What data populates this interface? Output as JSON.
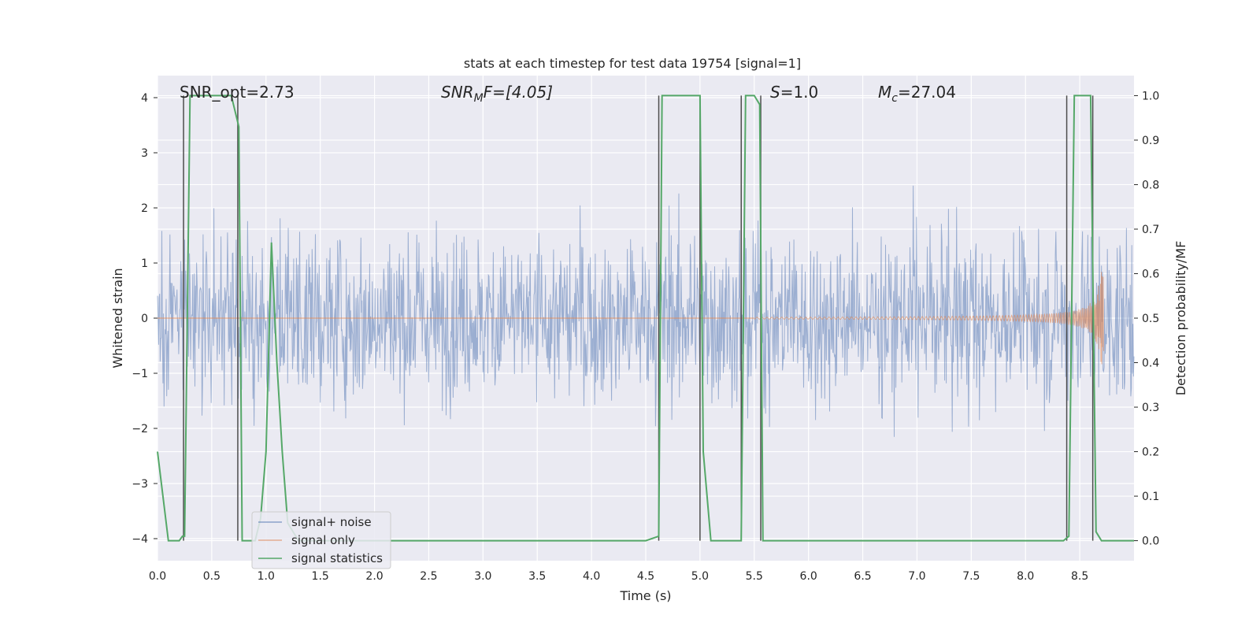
{
  "chart_data": {
    "type": "line",
    "title": "stats at each timestep for test data 19754 [signal=1]",
    "xlabel": "Time (s)",
    "ylabel": "Whitened strain",
    "ylabel_right": "Detection probability/MF",
    "xlim": [
      0,
      9
    ],
    "ylim": [
      -4.4,
      4.4
    ],
    "ylim_right": [
      -0.045,
      1.045
    ],
    "grid": true,
    "legend_placement": "lower-left",
    "x_ticks": [
      "0.0",
      "0.5",
      "1.0",
      "1.5",
      "2.0",
      "2.5",
      "3.0",
      "3.5",
      "4.0",
      "4.5",
      "5.0",
      "5.5",
      "6.0",
      "6.5",
      "7.0",
      "7.5",
      "8.0",
      "8.5"
    ],
    "y_ticks": [
      "−4",
      "−3",
      "−2",
      "−1",
      "0",
      "1",
      "2",
      "3",
      "4"
    ],
    "y_ticks_right": [
      "0.0",
      "0.1",
      "0.2",
      "0.3",
      "0.4",
      "0.5",
      "0.6",
      "0.7",
      "0.8",
      "0.9",
      "1.0"
    ],
    "annotations": {
      "snr_opt": "SNR_opt=2.73",
      "snr_mf_main": "SNR",
      "snr_mf_sub": "M",
      "snr_mf_rest": "F=[4.05]",
      "s_main": "S",
      "s_rest": "=1.0",
      "mc_main": "M",
      "mc_sub": "c",
      "mc_rest": "=27.04"
    },
    "series": [
      {
        "name": "signal+ noise",
        "color": "#4c72b0",
        "note_values": "dense noise, approx envelope ±2.5, peaks to ±4"
      },
      {
        "name": "signal only",
        "color": "#dd8452"
      },
      {
        "name": "signal statistics",
        "color": "#55a868",
        "x": [
          0.0,
          0.05,
          0.1,
          0.2,
          0.23,
          0.25,
          0.3,
          0.5,
          0.68,
          0.75,
          0.78,
          0.85,
          0.9,
          0.95,
          1.0,
          1.05,
          1.1,
          1.15,
          1.2,
          1.3,
          4.5,
          4.62,
          4.65,
          4.95,
          5.0,
          5.03,
          5.1,
          5.38,
          5.42,
          5.5,
          5.55,
          5.58,
          5.62,
          8.35,
          8.4,
          8.45,
          8.55,
          8.6,
          8.65,
          8.7,
          8.8,
          9.0
        ],
        "values": [
          0.2,
          0.1,
          0.0,
          0.0,
          0.01,
          0.01,
          1.0,
          1.0,
          1.0,
          0.93,
          0.0,
          0.0,
          0.0,
          0.05,
          0.2,
          0.67,
          0.4,
          0.2,
          0.04,
          0.0,
          0.0,
          0.01,
          1.0,
          1.0,
          1.0,
          0.2,
          0.0,
          0.0,
          1.0,
          1.0,
          0.98,
          0.0,
          0.0,
          0.0,
          0.01,
          1.0,
          1.0,
          1.0,
          0.02,
          0.0,
          0.0,
          0.0
        ]
      }
    ],
    "event_lines_x": [
      0.24,
      0.74,
      4.62,
      5.0,
      5.38,
      5.56,
      8.38,
      8.62
    ],
    "legend": [
      "signal+ noise",
      "signal only",
      "signal statistics"
    ],
    "colors": {
      "background": "#eaeaf2",
      "grid": "#ffffff",
      "noise": "#4c72b0",
      "signal": "#dd8452",
      "stats": "#55a868",
      "event": "#4d4d4d"
    }
  }
}
